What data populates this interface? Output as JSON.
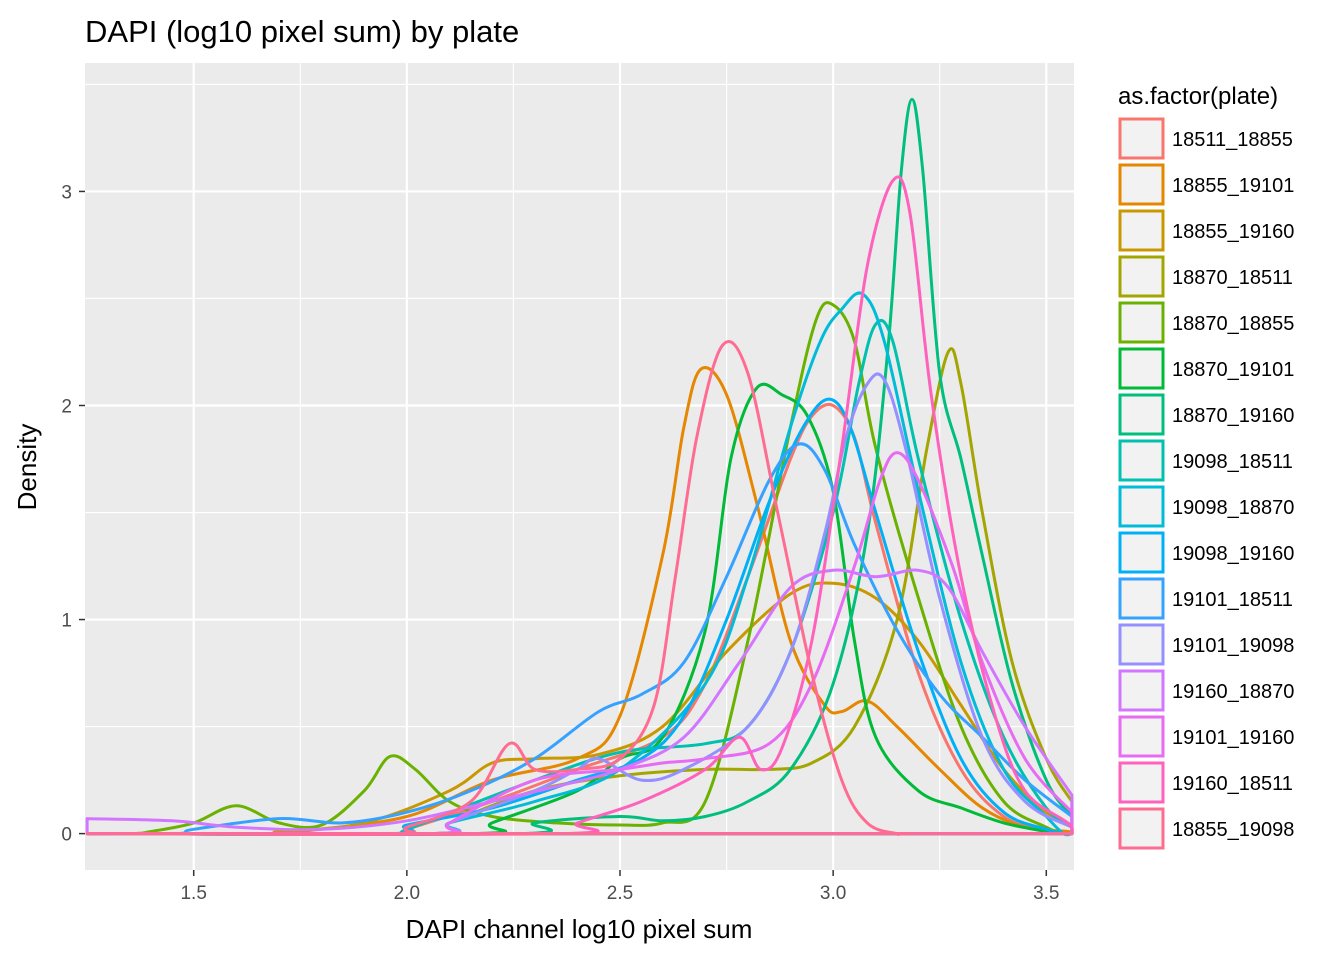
{
  "chart_data": {
    "type": "density",
    "title": "DAPI (log10 pixel sum) by plate",
    "xlabel": "DAPI channel log10 pixel sum",
    "ylabel": "Density",
    "xlim": [
      1.245,
      3.565
    ],
    "ylim": [
      -0.17,
      3.6
    ],
    "xticks": [
      1.5,
      2.0,
      2.5,
      3.0,
      3.5
    ],
    "xtick_labels": [
      "1.5",
      "2.0",
      "2.5",
      "3.0",
      "3.5"
    ],
    "yticks": [
      0,
      1,
      2,
      3
    ],
    "ytick_labels": [
      "0",
      "1",
      "2",
      "3"
    ],
    "panel_background": "#ebebeb",
    "grid_color": "#ffffff",
    "grid": true,
    "legend": {
      "title": "as.factor(plate)",
      "position": "right",
      "key_fill": "#f2f2f2"
    },
    "series": [
      {
        "name": "18511_18855",
        "color": "#F8766D",
        "points": [
          [
            2.0,
            0.02
          ],
          [
            2.2,
            0.15
          ],
          [
            2.4,
            0.3
          ],
          [
            2.6,
            0.45
          ],
          [
            2.7,
            0.7
          ],
          [
            2.8,
            1.2
          ],
          [
            2.9,
            1.75
          ],
          [
            2.95,
            1.95
          ],
          [
            3.0,
            2.0
          ],
          [
            3.05,
            1.85
          ],
          [
            3.1,
            1.45
          ],
          [
            3.2,
            0.75
          ],
          [
            3.3,
            0.3
          ],
          [
            3.4,
            0.08
          ],
          [
            3.5,
            0.01
          ]
        ]
      },
      {
        "name": "18855_19101",
        "color": "#E58700",
        "points": [
          [
            1.75,
            0.01
          ],
          [
            2.0,
            0.08
          ],
          [
            2.2,
            0.25
          ],
          [
            2.4,
            0.35
          ],
          [
            2.5,
            0.55
          ],
          [
            2.6,
            1.3
          ],
          [
            2.65,
            1.9
          ],
          [
            2.69,
            2.17
          ],
          [
            2.75,
            2.05
          ],
          [
            2.82,
            1.55
          ],
          [
            2.9,
            0.9
          ],
          [
            2.98,
            0.6
          ],
          [
            3.02,
            0.57
          ],
          [
            3.08,
            0.62
          ],
          [
            3.15,
            0.5
          ],
          [
            3.25,
            0.3
          ],
          [
            3.35,
            0.12
          ],
          [
            3.45,
            0.03
          ],
          [
            3.55,
            0.01
          ]
        ]
      },
      {
        "name": "18855_19160",
        "color": "#C99800",
        "points": [
          [
            1.7,
            0.01
          ],
          [
            1.9,
            0.05
          ],
          [
            2.1,
            0.2
          ],
          [
            2.2,
            0.33
          ],
          [
            2.3,
            0.35
          ],
          [
            2.45,
            0.37
          ],
          [
            2.6,
            0.5
          ],
          [
            2.75,
            0.85
          ],
          [
            2.9,
            1.12
          ],
          [
            3.0,
            1.17
          ],
          [
            3.1,
            1.1
          ],
          [
            3.2,
            0.9
          ],
          [
            3.3,
            0.6
          ],
          [
            3.4,
            0.3
          ],
          [
            3.5,
            0.1
          ],
          [
            3.56,
            0.04
          ]
        ]
      },
      {
        "name": "18870_18511",
        "color": "#A3A500",
        "points": [
          [
            2.1,
            0.05
          ],
          [
            2.3,
            0.2
          ],
          [
            2.5,
            0.27
          ],
          [
            2.7,
            0.3
          ],
          [
            2.85,
            0.3
          ],
          [
            2.95,
            0.33
          ],
          [
            3.05,
            0.5
          ],
          [
            3.15,
            1.0
          ],
          [
            3.22,
            1.8
          ],
          [
            3.27,
            2.25
          ],
          [
            3.3,
            2.1
          ],
          [
            3.35,
            1.5
          ],
          [
            3.42,
            0.8
          ],
          [
            3.5,
            0.35
          ],
          [
            3.56,
            0.15
          ]
        ]
      },
      {
        "name": "18870_18855",
        "color": "#6BB100",
        "points": [
          [
            1.4,
            0.01
          ],
          [
            1.5,
            0.05
          ],
          [
            1.6,
            0.13
          ],
          [
            1.7,
            0.05
          ],
          [
            1.8,
            0.04
          ],
          [
            1.9,
            0.2
          ],
          [
            1.96,
            0.36
          ],
          [
            2.02,
            0.3
          ],
          [
            2.1,
            0.15
          ],
          [
            2.2,
            0.08
          ],
          [
            2.35,
            0.05
          ],
          [
            2.5,
            0.04
          ],
          [
            2.6,
            0.05
          ],
          [
            2.7,
            0.15
          ],
          [
            2.8,
            0.9
          ],
          [
            2.9,
            1.9
          ],
          [
            2.96,
            2.4
          ],
          [
            3.0,
            2.47
          ],
          [
            3.05,
            2.3
          ],
          [
            3.1,
            1.8
          ],
          [
            3.2,
            1.1
          ],
          [
            3.3,
            0.5
          ],
          [
            3.4,
            0.15
          ],
          [
            3.5,
            0.03
          ]
        ]
      },
      {
        "name": "18870_19101",
        "color": "#00BA38",
        "points": [
          [
            2.2,
            0.05
          ],
          [
            2.4,
            0.2
          ],
          [
            2.5,
            0.35
          ],
          [
            2.6,
            0.45
          ],
          [
            2.7,
            0.95
          ],
          [
            2.76,
            1.75
          ],
          [
            2.82,
            2.08
          ],
          [
            2.88,
            2.05
          ],
          [
            2.94,
            1.95
          ],
          [
            3.0,
            1.6
          ],
          [
            3.05,
            0.9
          ],
          [
            3.1,
            0.45
          ],
          [
            3.2,
            0.2
          ],
          [
            3.3,
            0.12
          ],
          [
            3.4,
            0.05
          ],
          [
            3.5,
            0.01
          ]
        ]
      },
      {
        "name": "18870_19160",
        "color": "#00BF7D",
        "points": [
          [
            2.3,
            0.05
          ],
          [
            2.5,
            0.08
          ],
          [
            2.6,
            0.06
          ],
          [
            2.7,
            0.08
          ],
          [
            2.8,
            0.15
          ],
          [
            2.9,
            0.3
          ],
          [
            3.0,
            0.7
          ],
          [
            3.08,
            1.4
          ],
          [
            3.13,
            2.3
          ],
          [
            3.16,
            3.1
          ],
          [
            3.185,
            3.43
          ],
          [
            3.21,
            3.1
          ],
          [
            3.25,
            2.15
          ],
          [
            3.3,
            1.75
          ],
          [
            3.35,
            1.3
          ],
          [
            3.42,
            0.7
          ],
          [
            3.5,
            0.25
          ],
          [
            3.56,
            0.08
          ]
        ]
      },
      {
        "name": "19098_18511",
        "color": "#00C0AF",
        "points": [
          [
            2.0,
            0.02
          ],
          [
            2.3,
            0.25
          ],
          [
            2.5,
            0.38
          ],
          [
            2.7,
            0.42
          ],
          [
            2.8,
            0.5
          ],
          [
            2.9,
            0.85
          ],
          [
            3.0,
            1.5
          ],
          [
            3.06,
            2.1
          ],
          [
            3.1,
            2.38
          ],
          [
            3.14,
            2.3
          ],
          [
            3.2,
            1.75
          ],
          [
            3.3,
            1.0
          ],
          [
            3.4,
            0.45
          ],
          [
            3.5,
            0.12
          ],
          [
            3.56,
            0.04
          ]
        ]
      },
      {
        "name": "19098_18870",
        "color": "#00BCD8",
        "points": [
          [
            2.1,
            0.05
          ],
          [
            2.3,
            0.15
          ],
          [
            2.5,
            0.3
          ],
          [
            2.7,
            0.7
          ],
          [
            2.8,
            1.2
          ],
          [
            2.9,
            1.9
          ],
          [
            2.97,
            2.3
          ],
          [
            3.02,
            2.45
          ],
          [
            3.07,
            2.52
          ],
          [
            3.12,
            2.3
          ],
          [
            3.2,
            1.6
          ],
          [
            3.3,
            0.8
          ],
          [
            3.4,
            0.3
          ],
          [
            3.5,
            0.08
          ]
        ]
      },
      {
        "name": "19098_19160",
        "color": "#00B0F6",
        "points": [
          [
            2.0,
            0.04
          ],
          [
            2.2,
            0.12
          ],
          [
            2.4,
            0.25
          ],
          [
            2.55,
            0.35
          ],
          [
            2.65,
            0.55
          ],
          [
            2.75,
            1.0
          ],
          [
            2.85,
            1.55
          ],
          [
            2.93,
            1.9
          ],
          [
            2.99,
            2.03
          ],
          [
            3.04,
            1.9
          ],
          [
            3.1,
            1.5
          ],
          [
            3.2,
            0.85
          ],
          [
            3.3,
            0.35
          ],
          [
            3.4,
            0.1
          ],
          [
            3.5,
            0.02
          ]
        ]
      },
      {
        "name": "19101_18511",
        "color": "#35A2FF",
        "points": [
          [
            1.5,
            0.02
          ],
          [
            1.7,
            0.07
          ],
          [
            1.85,
            0.05
          ],
          [
            2.0,
            0.1
          ],
          [
            2.15,
            0.2
          ],
          [
            2.3,
            0.35
          ],
          [
            2.45,
            0.57
          ],
          [
            2.55,
            0.65
          ],
          [
            2.65,
            0.8
          ],
          [
            2.75,
            1.2
          ],
          [
            2.85,
            1.65
          ],
          [
            2.92,
            1.82
          ],
          [
            2.98,
            1.7
          ],
          [
            3.05,
            1.35
          ],
          [
            3.15,
            0.95
          ],
          [
            3.25,
            0.65
          ],
          [
            3.35,
            0.45
          ],
          [
            3.45,
            0.25
          ],
          [
            3.56,
            0.08
          ]
        ]
      },
      {
        "name": "19101_19098",
        "color": "#9590FF",
        "points": [
          [
            2.1,
            0.05
          ],
          [
            2.3,
            0.2
          ],
          [
            2.4,
            0.3
          ],
          [
            2.45,
            0.35
          ],
          [
            2.55,
            0.25
          ],
          [
            2.65,
            0.3
          ],
          [
            2.8,
            0.5
          ],
          [
            2.9,
            0.85
          ],
          [
            2.98,
            1.4
          ],
          [
            3.03,
            1.85
          ],
          [
            3.08,
            2.1
          ],
          [
            3.12,
            2.12
          ],
          [
            3.17,
            1.8
          ],
          [
            3.25,
            1.1
          ],
          [
            3.35,
            0.45
          ],
          [
            3.45,
            0.15
          ],
          [
            3.56,
            0.03
          ]
        ]
      },
      {
        "name": "19160_18870",
        "color": "#D89000",
        "points": [],
        "override_color": "#D376FF",
        "points_alt": [
          [
            1.25,
            0.07
          ],
          [
            1.45,
            0.06
          ],
          [
            1.6,
            0.03
          ],
          [
            1.8,
            0.02
          ],
          [
            2.0,
            0.06
          ],
          [
            2.2,
            0.15
          ],
          [
            2.35,
            0.22
          ],
          [
            2.5,
            0.3
          ],
          [
            2.65,
            0.45
          ],
          [
            2.78,
            0.8
          ],
          [
            2.9,
            1.15
          ],
          [
            3.0,
            1.23
          ],
          [
            3.1,
            1.2
          ],
          [
            3.2,
            1.23
          ],
          [
            3.27,
            1.15
          ],
          [
            3.35,
            0.85
          ],
          [
            3.45,
            0.5
          ],
          [
            3.56,
            0.18
          ]
        ]
      },
      {
        "name": "19101_19160",
        "color": "#E76BF3",
        "points": [
          [
            2.1,
            0.05
          ],
          [
            2.3,
            0.25
          ],
          [
            2.5,
            0.3
          ],
          [
            2.6,
            0.33
          ],
          [
            2.7,
            0.35
          ],
          [
            2.85,
            0.42
          ],
          [
            2.95,
            0.7
          ],
          [
            3.05,
            1.25
          ],
          [
            3.11,
            1.65
          ],
          [
            3.15,
            1.78
          ],
          [
            3.2,
            1.65
          ],
          [
            3.28,
            1.25
          ],
          [
            3.35,
            0.8
          ],
          [
            3.45,
            0.35
          ],
          [
            3.56,
            0.1
          ]
        ]
      },
      {
        "name": "19160_18511",
        "color": "#FF62BC",
        "points": [
          [
            2.4,
            0.05
          ],
          [
            2.55,
            0.15
          ],
          [
            2.7,
            0.3
          ],
          [
            2.78,
            0.45
          ],
          [
            2.83,
            0.3
          ],
          [
            2.88,
            0.4
          ],
          [
            2.95,
            0.9
          ],
          [
            3.02,
            1.8
          ],
          [
            3.08,
            2.65
          ],
          [
            3.14,
            3.05
          ],
          [
            3.18,
            2.9
          ],
          [
            3.23,
            2.05
          ],
          [
            3.3,
            1.2
          ],
          [
            3.38,
            0.55
          ],
          [
            3.45,
            0.2
          ],
          [
            3.55,
            0.05
          ]
        ]
      },
      {
        "name": "18855_19098",
        "color": "#FF6C91",
        "points": [
          [
            2.0,
            0.03
          ],
          [
            2.15,
            0.15
          ],
          [
            2.24,
            0.42
          ],
          [
            2.3,
            0.3
          ],
          [
            2.4,
            0.3
          ],
          [
            2.5,
            0.35
          ],
          [
            2.58,
            0.6
          ],
          [
            2.63,
            1.2
          ],
          [
            2.68,
            1.85
          ],
          [
            2.74,
            2.28
          ],
          [
            2.8,
            2.15
          ],
          [
            2.87,
            1.5
          ],
          [
            2.95,
            0.75
          ],
          [
            3.02,
            0.25
          ],
          [
            3.08,
            0.05
          ],
          [
            3.15,
            0.0
          ]
        ]
      }
    ]
  }
}
